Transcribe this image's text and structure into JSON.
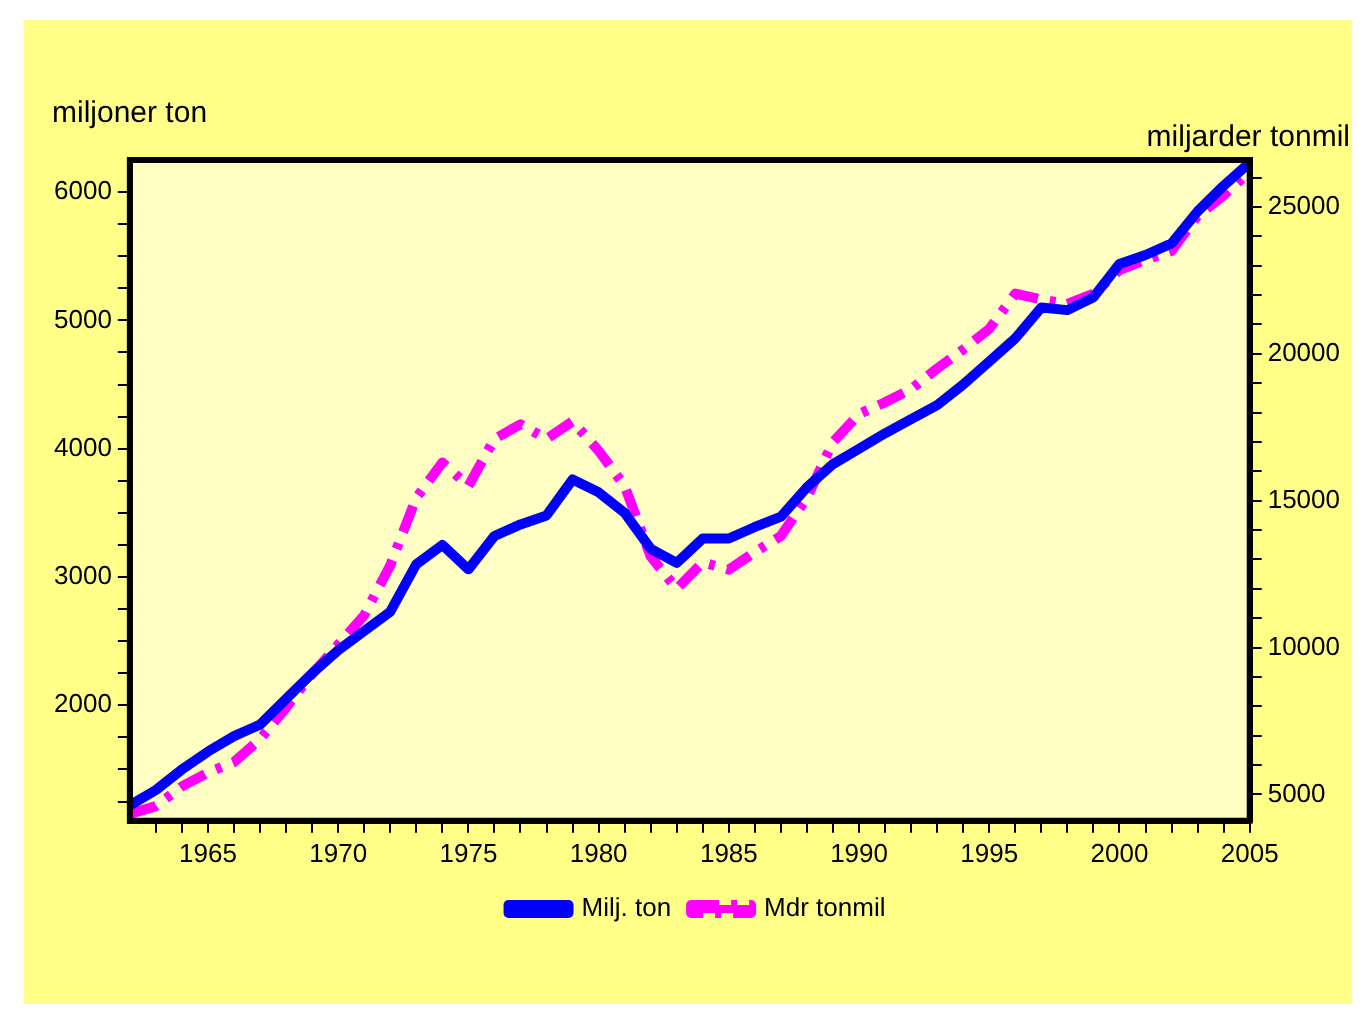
{
  "chart_data": {
    "type": "line",
    "ylabel": "miljoner ton",
    "y2label": "miljarder tonmil",
    "x": [
      1962,
      1963,
      1964,
      1965,
      1966,
      1967,
      1968,
      1969,
      1970,
      1971,
      1972,
      1973,
      1974,
      1975,
      1976,
      1977,
      1978,
      1979,
      1980,
      1981,
      1982,
      1983,
      1984,
      1985,
      1986,
      1987,
      1988,
      1989,
      1990,
      1991,
      1992,
      1993,
      1994,
      1995,
      1996,
      1997,
      1998,
      1999,
      2000,
      2001,
      2002,
      2003,
      2004,
      2005
    ],
    "series": [
      {
        "name": "Milj. ton",
        "color": "#0000ff",
        "line_style": "solid",
        "values": [
          1220,
          1340,
          1500,
          1640,
          1760,
          1850,
          2050,
          2250,
          2430,
          2580,
          2730,
          3100,
          3250,
          3060,
          3320,
          3410,
          3480,
          3760,
          3660,
          3500,
          3220,
          3110,
          3300,
          3300,
          3390,
          3470,
          3700,
          3880,
          4000,
          4120,
          4230,
          4340,
          4500,
          4680,
          4860,
          5100,
          5080,
          5180,
          5440,
          5510,
          5600,
          5850,
          6050,
          6230
        ]
      },
      {
        "name": "Mdr tonmil",
        "color": "#ff00ff",
        "line_style": "dashed",
        "axis": "y2",
        "values": [
          4330,
          4600,
          5270,
          5740,
          6100,
          6880,
          7950,
          9100,
          10100,
          11100,
          12800,
          15100,
          16300,
          15500,
          17100,
          17600,
          17100,
          17700,
          16700,
          15500,
          13100,
          12000,
          12900,
          12650,
          13250,
          13800,
          15100,
          17000,
          17950,
          18350,
          18800,
          19500,
          20150,
          20850,
          22050,
          21850,
          21700,
          22050,
          22850,
          23200,
          23500,
          24700,
          25400,
          26200
        ]
      }
    ],
    "xlim": [
      1962,
      2005
    ],
    "xticks": [
      {
        "value": 1963,
        "label": null
      },
      {
        "value": 1964,
        "label": null
      },
      1965,
      {
        "value": 1966,
        "label": null
      },
      {
        "value": 1967,
        "label": null
      },
      {
        "value": 1968,
        "label": null
      },
      {
        "value": 1969,
        "label": null
      },
      1970,
      {
        "value": 1971,
        "label": null
      },
      {
        "value": 1972,
        "label": null
      },
      {
        "value": 1973,
        "label": null
      },
      {
        "value": 1974,
        "label": null
      },
      1975,
      {
        "value": 1976,
        "label": null
      },
      {
        "value": 1977,
        "label": null
      },
      {
        "value": 1978,
        "label": null
      },
      {
        "value": 1979,
        "label": null
      },
      1980,
      {
        "value": 1981,
        "label": null
      },
      {
        "value": 1982,
        "label": null
      },
      {
        "value": 1983,
        "label": null
      },
      {
        "value": 1984,
        "label": null
      },
      1985,
      {
        "value": 1986,
        "label": null
      },
      {
        "value": 1987,
        "label": null
      },
      {
        "value": 1988,
        "label": null
      },
      {
        "value": 1989,
        "label": null
      },
      1990,
      {
        "value": 1991,
        "label": null
      },
      {
        "value": 1992,
        "label": null
      },
      {
        "value": 1993,
        "label": null
      },
      {
        "value": 1994,
        "label": null
      },
      1995,
      {
        "value": 1996,
        "label": null
      },
      {
        "value": 1997,
        "label": null
      },
      {
        "value": 1998,
        "label": null
      },
      {
        "value": 1999,
        "label": null
      },
      2000,
      {
        "value": 2001,
        "label": null
      },
      {
        "value": 2002,
        "label": null
      },
      {
        "value": 2003,
        "label": null
      },
      {
        "value": 2004,
        "label": null
      },
      2005
    ],
    "ylim": [
      1100,
      6250
    ],
    "yticks": [
      {
        "value": 1250,
        "label": null
      },
      {
        "value": 1500,
        "label": null
      },
      {
        "value": 1750,
        "label": null
      },
      2000,
      {
        "value": 2250,
        "label": null
      },
      {
        "value": 2500,
        "label": null
      },
      {
        "value": 2750,
        "label": null
      },
      3000,
      {
        "value": 3250,
        "label": null
      },
      {
        "value": 3500,
        "label": null
      },
      {
        "value": 3750,
        "label": null
      },
      4000,
      {
        "value": 4250,
        "label": null
      },
      {
        "value": 4500,
        "label": null
      },
      {
        "value": 4750,
        "label": null
      },
      5000,
      {
        "value": 5250,
        "label": null
      },
      {
        "value": 5500,
        "label": null
      },
      {
        "value": 5750,
        "label": null
      },
      6000
    ],
    "y2lim": [
      4100,
      26600
    ],
    "y2ticks": [
      5000,
      {
        "value": 6000,
        "label": null
      },
      {
        "value": 7000,
        "label": null
      },
      {
        "value": 8000,
        "label": null
      },
      {
        "value": 9000,
        "label": null
      },
      10000,
      {
        "value": 11000,
        "label": null
      },
      {
        "value": 12000,
        "label": null
      },
      {
        "value": 13000,
        "label": null
      },
      {
        "value": 14000,
        "label": null
      },
      15000,
      {
        "value": 16000,
        "label": null
      },
      {
        "value": 17000,
        "label": null
      },
      {
        "value": 18000,
        "label": null
      },
      {
        "value": 19000,
        "label": null
      },
      20000,
      {
        "value": 21000,
        "label": null
      },
      {
        "value": 22000,
        "label": null
      },
      {
        "value": 23000,
        "label": null
      },
      {
        "value": 24000,
        "label": null
      },
      25000,
      {
        "value": 26000,
        "label": null
      }
    ],
    "grid": false,
    "legend": "bottom",
    "marker": "none"
  }
}
